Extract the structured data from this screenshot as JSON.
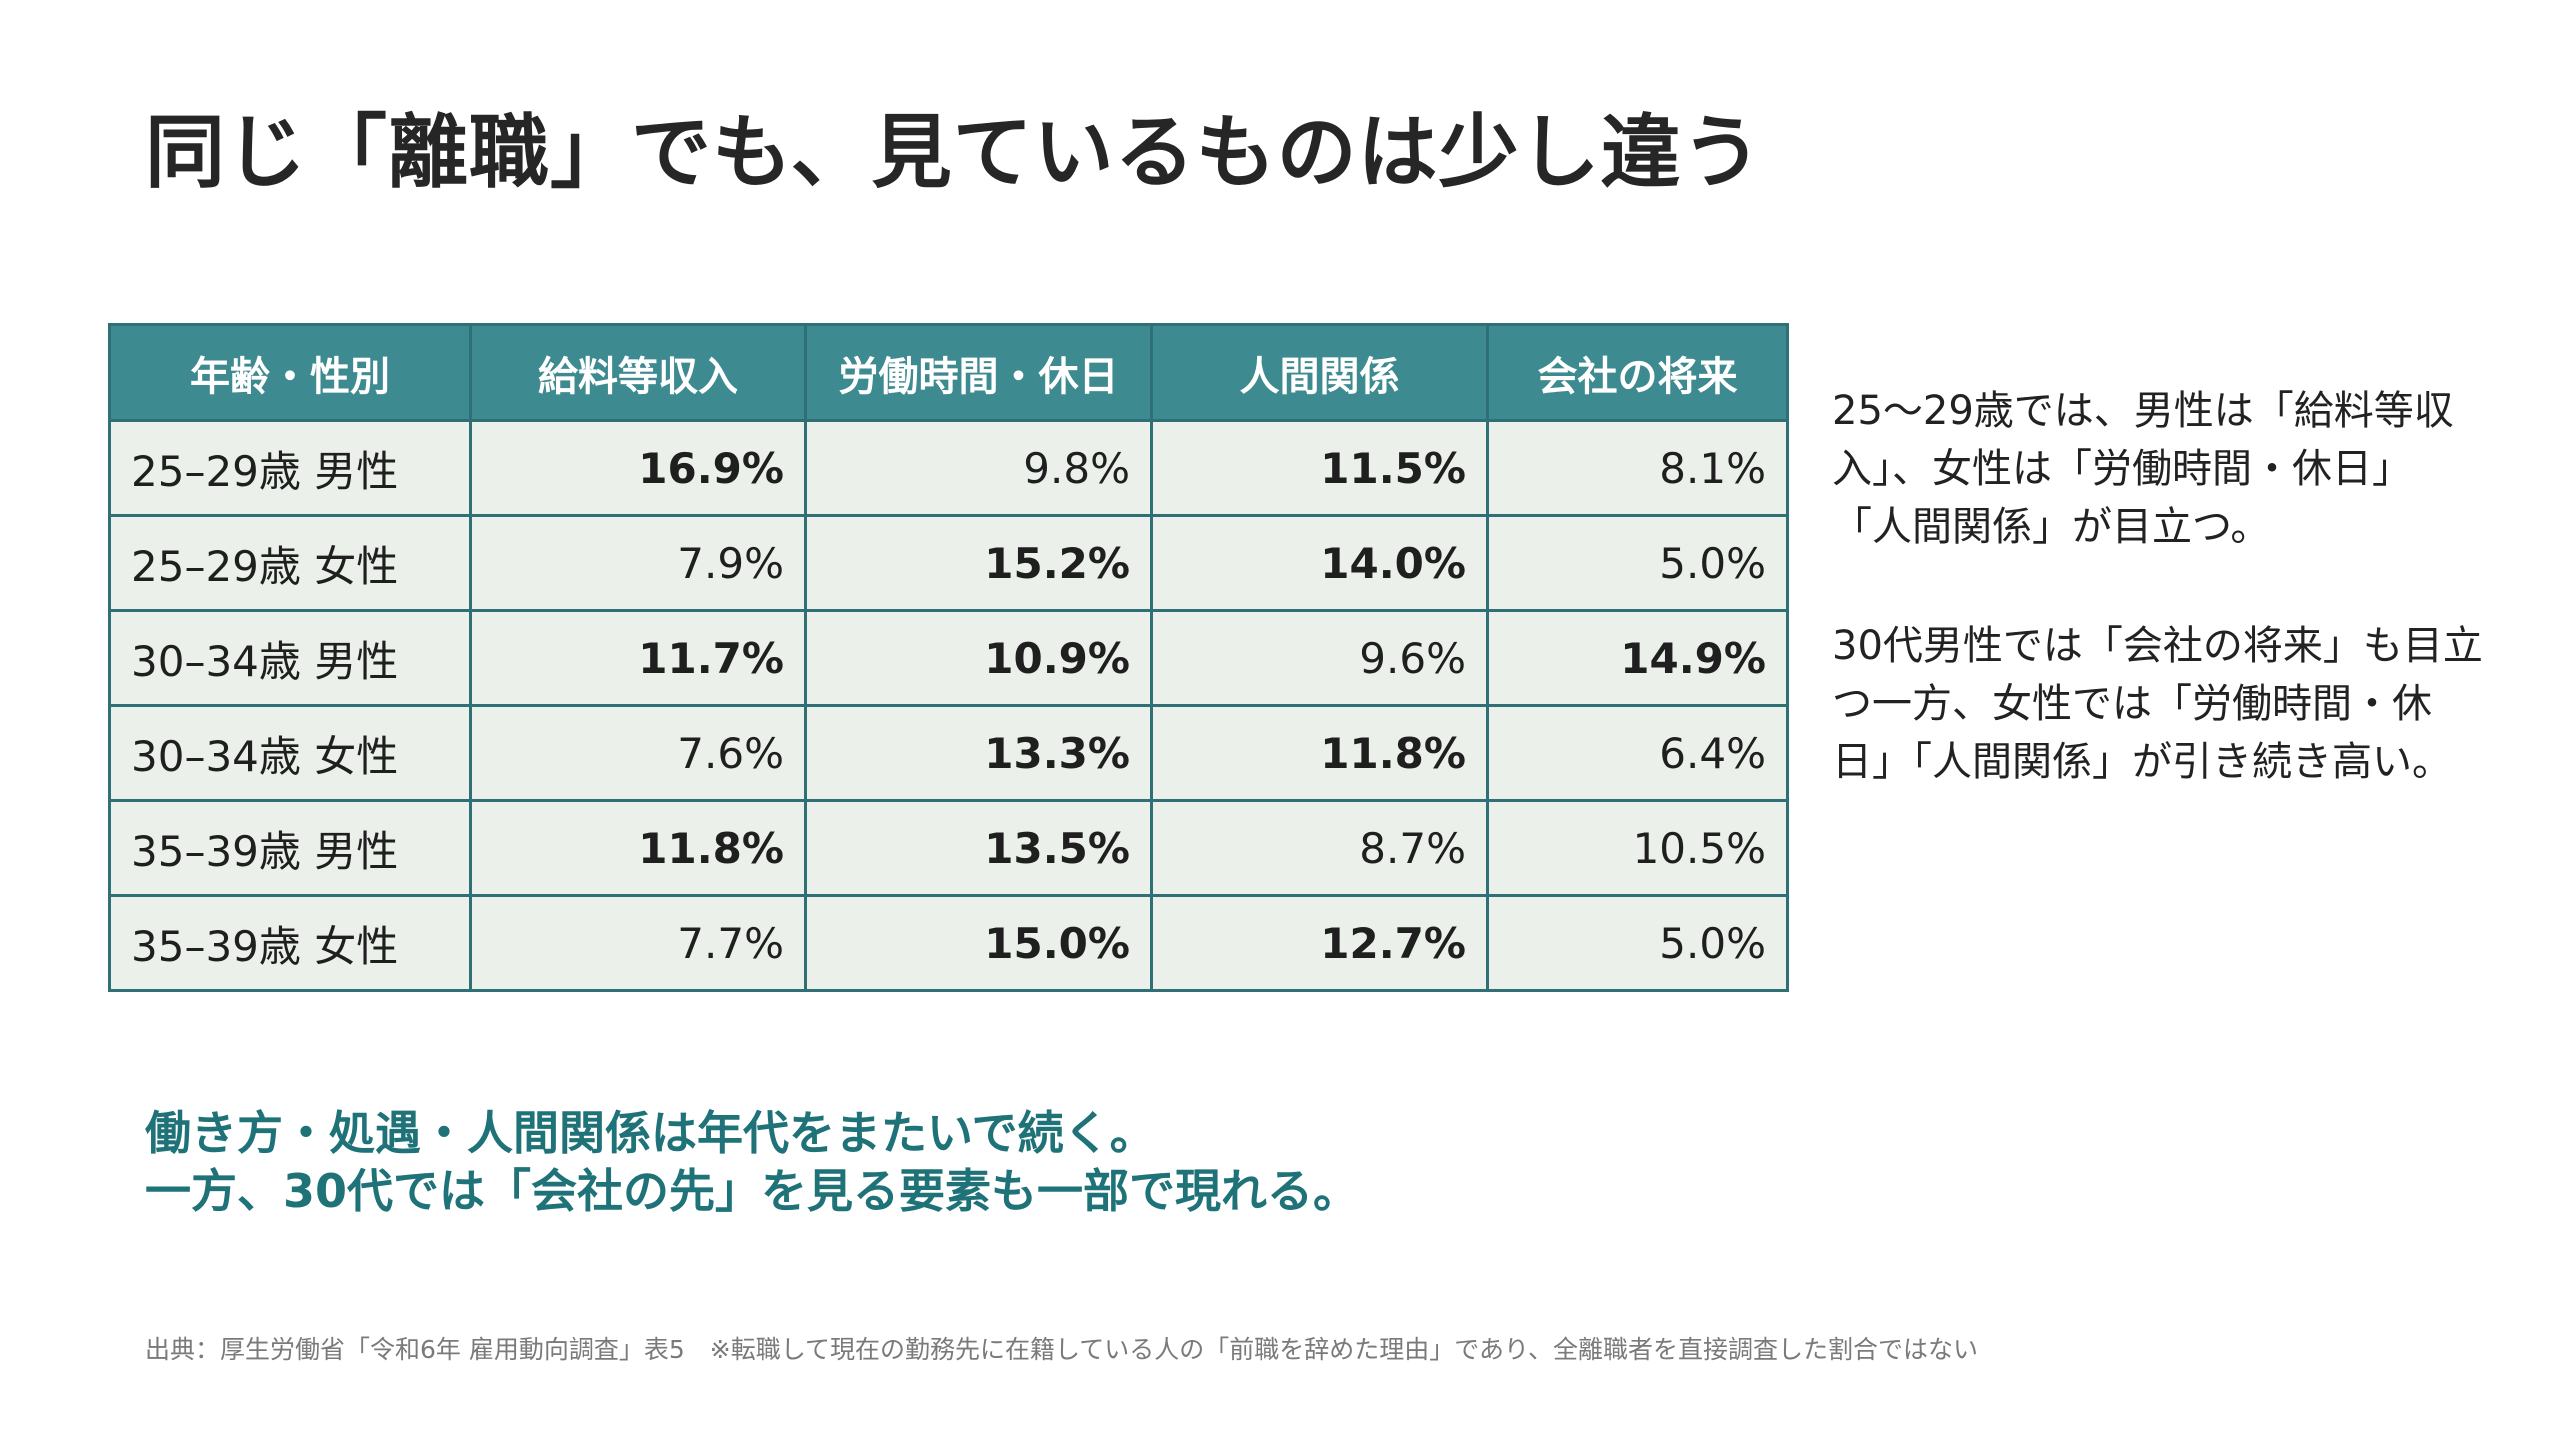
{
  "title": "同じ「離職」でも、見ているものは少し違う",
  "table": {
    "headers": [
      "年齢・性別",
      "給料等収入",
      "労働時間・休日",
      "人間関係",
      "会社の将来"
    ],
    "rows": [
      {
        "label": "25–29歳 男性",
        "cells": [
          {
            "value": "16.9%",
            "bold": true
          },
          {
            "value": "9.8%",
            "bold": false
          },
          {
            "value": "11.5%",
            "bold": true
          },
          {
            "value": "8.1%",
            "bold": false
          }
        ]
      },
      {
        "label": "25–29歳 女性",
        "cells": [
          {
            "value": "7.9%",
            "bold": false
          },
          {
            "value": "15.2%",
            "bold": true
          },
          {
            "value": "14.0%",
            "bold": true
          },
          {
            "value": "5.0%",
            "bold": false
          }
        ]
      },
      {
        "label": "30–34歳 男性",
        "cells": [
          {
            "value": "11.7%",
            "bold": true
          },
          {
            "value": "10.9%",
            "bold": true
          },
          {
            "value": "9.6%",
            "bold": false
          },
          {
            "value": "14.9%",
            "bold": true
          }
        ]
      },
      {
        "label": "30–34歳 女性",
        "cells": [
          {
            "value": "7.6%",
            "bold": false
          },
          {
            "value": "13.3%",
            "bold": true
          },
          {
            "value": "11.8%",
            "bold": true
          },
          {
            "value": "6.4%",
            "bold": false
          }
        ]
      },
      {
        "label": "35–39歳 男性",
        "cells": [
          {
            "value": "11.8%",
            "bold": true
          },
          {
            "value": "13.5%",
            "bold": true
          },
          {
            "value": "8.7%",
            "bold": false
          },
          {
            "value": "10.5%",
            "bold": false
          }
        ]
      },
      {
        "label": "35–39歳 女性",
        "cells": [
          {
            "value": "7.7%",
            "bold": false
          },
          {
            "value": "15.0%",
            "bold": true
          },
          {
            "value": "12.7%",
            "bold": true
          },
          {
            "value": "5.0%",
            "bold": false
          }
        ]
      }
    ]
  },
  "notes": {
    "note1": [
      "25〜29歳では、男性は「給料等収",
      "入」、女性は「労働時間・休日」",
      "「人間関係」が目立つ。"
    ],
    "note2": [
      "30代男性では「会社の将来」も目立",
      "つ一方、女性では「労働時間・休",
      "日」「人間関係」が引き続き高い。"
    ]
  },
  "takeaway": {
    "line1": "働き方・処遇・人間関係は年代をまたいで続く。",
    "line2": "一方、30代では「会社の先」を見る要素も一部で現れる。"
  },
  "source": "出典：厚生労働省「令和6年 雇用動向調査」表5　※転職して現在の勤務先に在籍している人の「前職を辞めた理由」であり、全離職者を直接調査した割合ではない",
  "colors": {
    "header_bg": "#3e8a91",
    "cell_bg": "#ebf0ea",
    "border": "#2f6f76",
    "accent_text": "#1f7378"
  }
}
